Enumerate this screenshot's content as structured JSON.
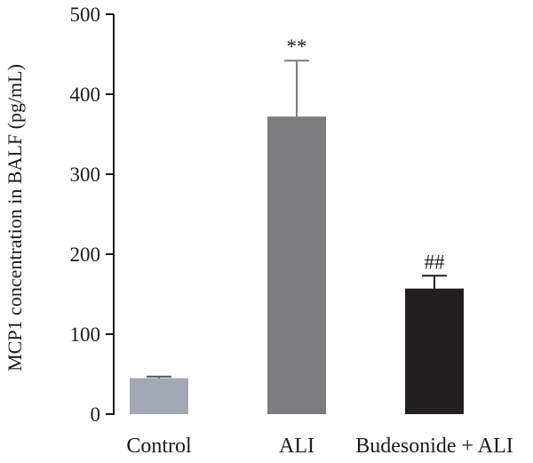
{
  "chart_data": {
    "type": "bar",
    "title": "",
    "xlabel": "",
    "ylabel": "MCP1 concentration in BALF (pg/mL)",
    "ylim": [
      0,
      500
    ],
    "yticks": [
      0,
      100,
      200,
      300,
      400,
      500
    ],
    "categories": [
      "Control",
      "ALI",
      "Budesonide + ALI"
    ],
    "values": [
      45,
      372,
      157
    ],
    "errors": [
      2,
      70,
      16
    ],
    "annotations": [
      "",
      "**",
      "##"
    ],
    "colors": [
      "#a3a8b4",
      "#7c7c7f",
      "#231f20"
    ],
    "grid": false,
    "legend": "none"
  }
}
